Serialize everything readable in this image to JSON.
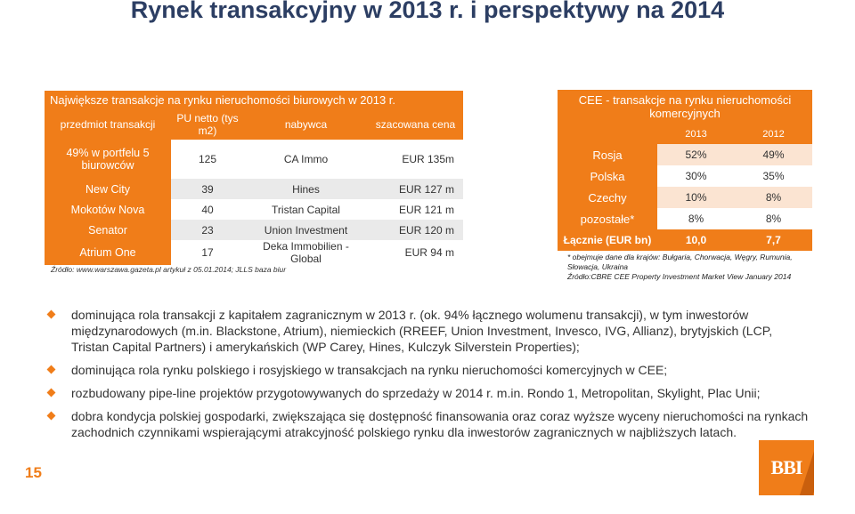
{
  "header": {
    "title": "Rynek transakcyjny w 2013 r. i perspektywy na 2014"
  },
  "left_table": {
    "caption": "Największe transakcje na rynku nieruchomości biurowych w 2013 r.",
    "columns": [
      "przedmiot transakcji",
      "PU netto (tys m2)",
      "nabywca",
      "szacowana cena"
    ],
    "rows": [
      {
        "subject": "49% w portfelu 5 biurowców",
        "area": "125",
        "buyer": "CA Immo",
        "price": "EUR 135m"
      },
      {
        "subject": "New City",
        "area": "39",
        "buyer": "Hines",
        "price": "EUR 127 m"
      },
      {
        "subject": "Mokotów Nova",
        "area": "40",
        "buyer": "Tristan Capital",
        "price": "EUR 121 m"
      },
      {
        "subject": "Senator",
        "area": "23",
        "buyer": "Union Investment",
        "price": "EUR 120 m"
      },
      {
        "subject": "Atrium One",
        "area": "17",
        "buyer": "Deka Immobilien - Global",
        "price": "EUR 94 m"
      }
    ],
    "source": "Źródło: www.warszawa.gazeta.pl  artykuł z 05.01.2014; JLLS baza biur"
  },
  "right_table": {
    "title": "CEE - transakcje na rynku nieruchomości komercyjnych",
    "years": [
      "2013",
      "2012"
    ],
    "rows": [
      {
        "country": "Rosja",
        "v2013": "52%",
        "v2012": "49%"
      },
      {
        "country": "Polska",
        "v2013": "30%",
        "v2012": "35%"
      },
      {
        "country": "Czechy",
        "v2013": "10%",
        "v2012": "8%"
      },
      {
        "country": "pozostałe*",
        "v2013": "8%",
        "v2012": "8%"
      }
    ],
    "total": {
      "label": "Łącznie (EUR bn)",
      "v2013": "10,0",
      "v2012": "7,7"
    },
    "note": "* obejmuje dane dla krajów: Bułgaria, Chorwacja, Węgry, Rumunia, Słowacja, Ukraina",
    "source": "Źródło:CBRE CEE Property Investment  Market View January 2014"
  },
  "bullets": [
    "dominująca rola transakcji z kapitałem zagranicznym w 2013 r. (ok. 94% łącznego wolumenu transakcji), w tym inwestorów międzynarodowych (m.in. Blackstone, Atrium), niemieckich (RREEF, Union Investment, Invesco, IVG, Allianz), brytyjskich (LCP, Tristan Capital Partners) i amerykańskich (WP Carey, Hines, Kulczyk Silverstein Properties);",
    "dominująca rola rynku polskiego i rosyjskiego w transakcjach na rynku nieruchomości komercyjnych w CEE;",
    "rozbudowany pipe-line projektów przygotowywanych do sprzedaży w 2014 r. m.in. Rondo 1, Metropolitan, Skylight, Plac Unii;",
    "dobra kondycja polskiej gospodarki, zwiększająca się dostępność finansowania oraz coraz wyższe wyceny nieruchomości na rynkach zachodnich czynnikami wspierającymi atrakcyjność polskiego rynku dla inwestorów zagranicznych w najbliższych latach."
  ],
  "footer": {
    "page_number": "15",
    "logo_text": "BBI"
  },
  "colors": {
    "accent": "#f07d19",
    "title": "#2c3e63",
    "row_shade": "#eaeaea",
    "right_shade": "#fbe4d2"
  }
}
